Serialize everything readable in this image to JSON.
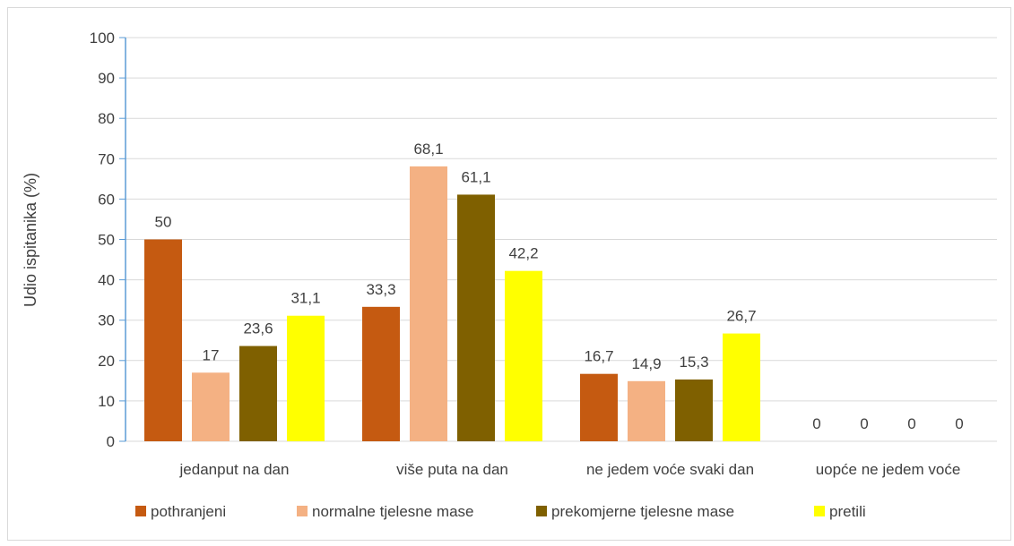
{
  "chart_data": {
    "type": "bar",
    "title": "",
    "xlabel": "",
    "ylabel": "Udio ispitanika (%)",
    "ylim": [
      0,
      100
    ],
    "yticks": [
      0,
      10,
      20,
      30,
      40,
      50,
      60,
      70,
      80,
      90,
      100
    ],
    "grid": true,
    "legend_position": "bottom",
    "categories": [
      "jedanput na dan",
      "više puta na dan",
      "ne jedem voće svaki dan",
      "uopće ne jedem voće"
    ],
    "series": [
      {
        "name": "pothranjeni",
        "color": "#C55A11",
        "values": [
          50,
          33.3,
          16.7,
          0
        ],
        "labels": [
          "50",
          "33,3",
          "16,7",
          "0"
        ]
      },
      {
        "name": "normalne tjelesne mase",
        "color": "#F4B183",
        "values": [
          17,
          68.1,
          14.9,
          0
        ],
        "labels": [
          "17",
          "68,1",
          "14,9",
          "0"
        ]
      },
      {
        "name": "prekomjerne tjelesne mase",
        "color": "#7F6000",
        "values": [
          23.6,
          61.1,
          15.3,
          0
        ],
        "labels": [
          "23,6",
          "61,1",
          "15,3",
          "0"
        ]
      },
      {
        "name": "pretili",
        "color": "#FFFF00",
        "values": [
          31.1,
          42.2,
          26.7,
          0
        ],
        "labels": [
          "31,1",
          "42,2",
          "26,7",
          "0"
        ]
      }
    ]
  }
}
